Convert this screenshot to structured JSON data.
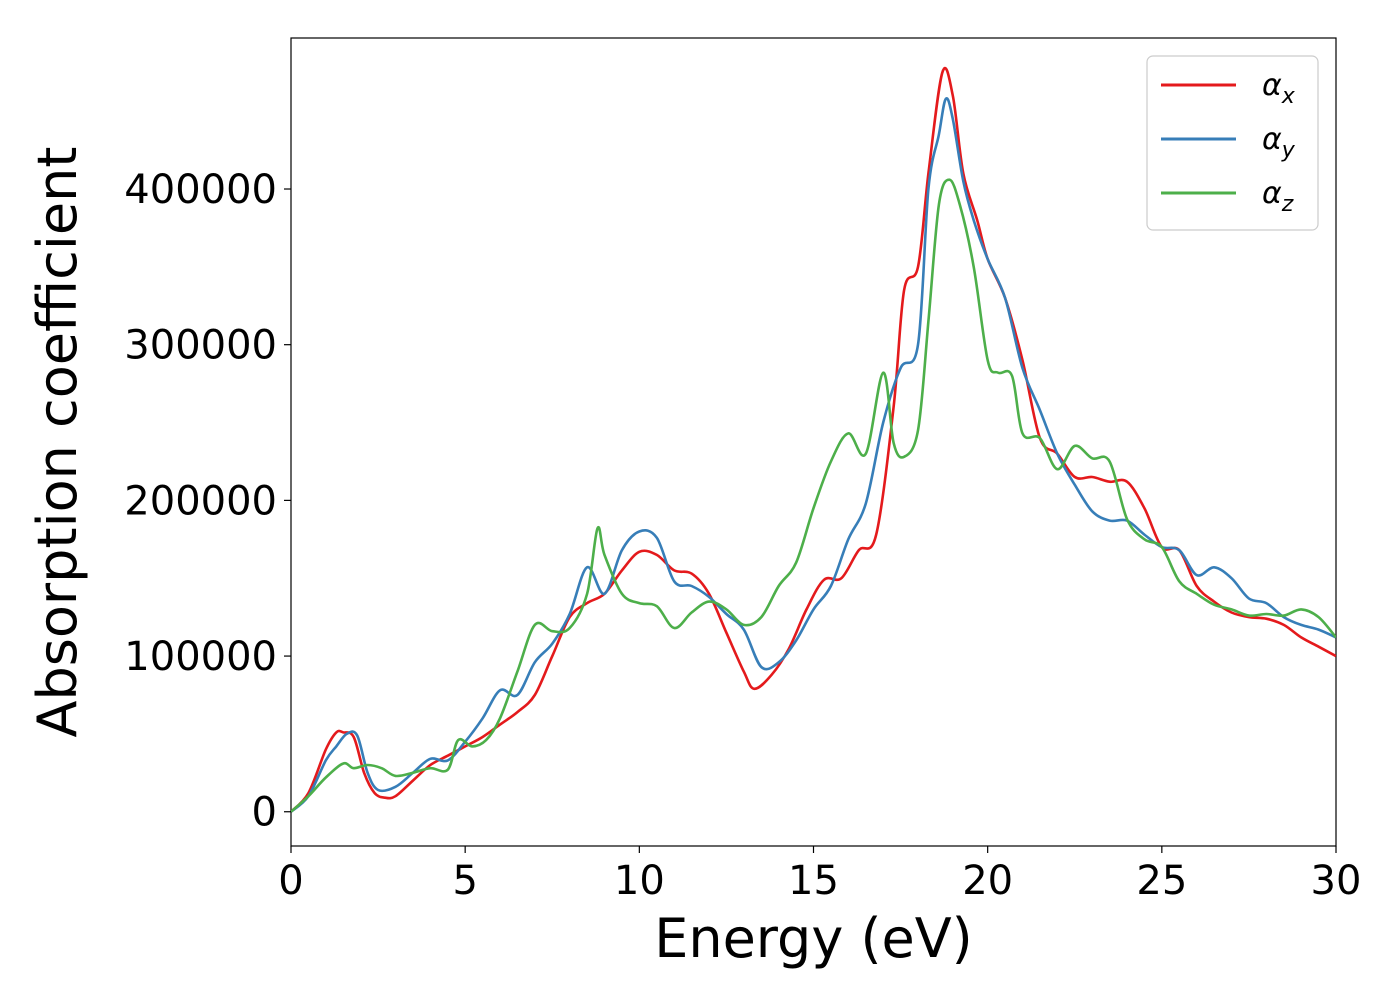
{
  "chart_data": {
    "type": "line",
    "title": "",
    "xlabel": "Energy (eV)",
    "ylabel": "Absorption coefficient",
    "xlim": [
      0,
      30
    ],
    "ylim": [
      -22000,
      497000
    ],
    "xticks": [
      0,
      5,
      10,
      15,
      20,
      25,
      30
    ],
    "yticks": [
      0,
      100000,
      200000,
      300000,
      400000
    ],
    "grid": false,
    "legend_position": "top-right",
    "series": [
      {
        "name": "αx",
        "name_base": "α",
        "name_sub": "x",
        "color": "#e41a1c",
        "x": [
          0,
          0.5,
          1,
          1.3,
          1.5,
          1.8,
          2.1,
          2.4,
          2.7,
          3,
          3.5,
          4,
          4.5,
          5,
          5.5,
          6,
          6.5,
          7,
          7.5,
          8,
          8.5,
          9,
          9.5,
          10,
          10.5,
          11,
          11.5,
          12,
          12.5,
          13,
          13.3,
          13.8,
          14.3,
          14.8,
          15.3,
          15.8,
          16.3,
          16.8,
          17.3,
          17.6,
          18,
          18.3,
          18.7,
          19,
          19.3,
          19.7,
          20,
          20.5,
          21,
          21.5,
          22,
          22.5,
          23,
          23.5,
          24,
          24.5,
          25,
          25.5,
          26,
          26.5,
          27,
          27.5,
          28,
          28.5,
          29,
          29.5,
          30
        ],
        "y": [
          0,
          12000,
          40000,
          51000,
          51000,
          48000,
          25000,
          12000,
          9000,
          10000,
          20000,
          30000,
          36000,
          42000,
          48000,
          56000,
          64000,
          75000,
          100000,
          125000,
          134000,
          140000,
          155000,
          167000,
          165000,
          155000,
          153000,
          140000,
          115000,
          90000,
          79000,
          88000,
          105000,
          130000,
          149000,
          150000,
          168000,
          178000,
          260000,
          335000,
          350000,
          410000,
          475000,
          460000,
          410000,
          380000,
          355000,
          330000,
          290000,
          240000,
          230000,
          215000,
          215000,
          212000,
          212000,
          195000,
          170000,
          168000,
          145000,
          135000,
          128000,
          125000,
          124000,
          120000,
          112000,
          106000,
          100000
        ]
      },
      {
        "name": "αy",
        "name_base": "α",
        "name_sub": "y",
        "color": "#377eb8",
        "x": [
          0,
          0.5,
          1,
          1.3,
          1.6,
          1.9,
          2.2,
          2.5,
          3,
          3.5,
          4,
          4.5,
          5,
          5.5,
          6,
          6.5,
          7,
          7.5,
          8,
          8.5,
          9,
          9.5,
          10,
          10.5,
          11,
          11.5,
          12,
          12.5,
          13,
          13.5,
          14,
          14.5,
          15,
          15.5,
          16,
          16.5,
          17,
          17.5,
          18,
          18.3,
          18.6,
          18.8,
          19,
          19.3,
          19.6,
          20,
          20.5,
          21,
          21.5,
          22,
          22.5,
          23,
          23.5,
          24,
          24.5,
          25,
          25.5,
          26,
          26.5,
          27,
          27.5,
          28,
          28.5,
          29,
          29.5,
          30
        ],
        "y": [
          0,
          10000,
          33000,
          42000,
          50000,
          49000,
          25000,
          14000,
          16000,
          25000,
          34000,
          33000,
          45000,
          60000,
          78000,
          75000,
          96000,
          108000,
          127000,
          157000,
          140000,
          168000,
          180000,
          176000,
          148000,
          145000,
          138000,
          127000,
          117000,
          93000,
          96000,
          110000,
          130000,
          145000,
          175000,
          198000,
          250000,
          285000,
          300000,
          400000,
          435000,
          458000,
          445000,
          405000,
          380000,
          355000,
          330000,
          285000,
          258000,
          230000,
          210000,
          193000,
          187000,
          187000,
          178000,
          170000,
          168000,
          152000,
          157000,
          150000,
          137000,
          134000,
          125000,
          120000,
          117000,
          112000
        ]
      },
      {
        "name": "αz",
        "name_base": "α",
        "name_sub": "z",
        "color": "#4daf4a",
        "x": [
          0,
          0.5,
          1,
          1.5,
          1.8,
          2.2,
          2.6,
          3,
          3.5,
          4,
          4.5,
          4.8,
          5.2,
          5.6,
          6,
          6.5,
          7,
          7.5,
          8,
          8.5,
          8.8,
          9,
          9.5,
          10,
          10.5,
          11,
          11.5,
          12,
          12.5,
          13,
          13.5,
          14,
          14.5,
          15,
          15.5,
          16,
          16.5,
          17,
          17.3,
          17.6,
          18,
          18.3,
          18.6,
          18.9,
          19.2,
          19.6,
          20,
          20.3,
          20.7,
          21,
          21.5,
          22,
          22.5,
          23,
          23.5,
          24,
          24.5,
          25,
          25.5,
          26,
          26.5,
          27,
          27.5,
          28,
          28.5,
          29,
          29.5,
          30
        ],
        "y": [
          0,
          10000,
          22000,
          31000,
          28000,
          30000,
          28000,
          23000,
          25000,
          28000,
          27000,
          46000,
          42000,
          46000,
          60000,
          90000,
          120000,
          116000,
          118000,
          140000,
          182000,
          165000,
          140000,
          134000,
          132000,
          118000,
          128000,
          135000,
          130000,
          120000,
          125000,
          145000,
          160000,
          195000,
          225000,
          243000,
          230000,
          282000,
          237000,
          228000,
          245000,
          315000,
          390000,
          406000,
          390000,
          350000,
          290000,
          282000,
          280000,
          243000,
          240000,
          220000,
          235000,
          227000,
          225000,
          188000,
          175000,
          170000,
          148000,
          140000,
          133000,
          130000,
          126000,
          127000,
          126000,
          130000,
          125000,
          112000
        ]
      }
    ]
  }
}
